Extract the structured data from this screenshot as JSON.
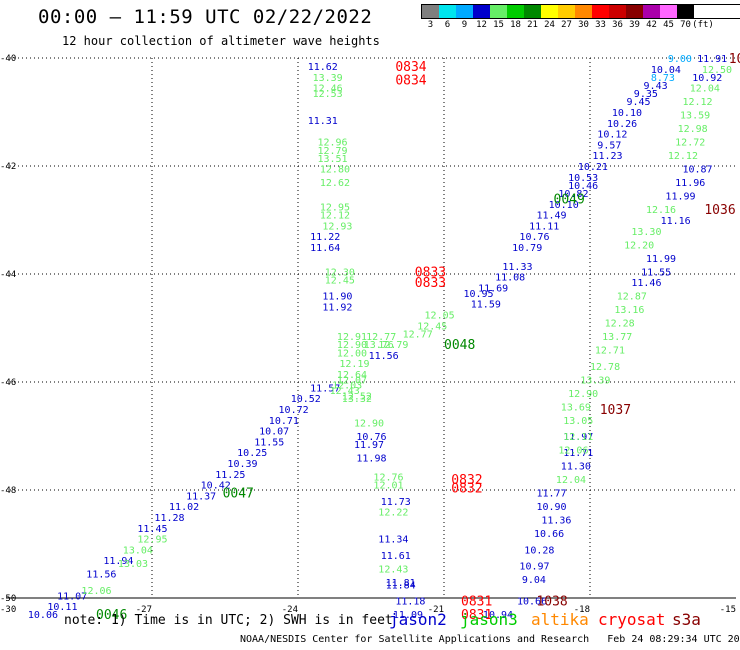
{
  "header": {
    "title": "00:00 – 11:59 UTC 02/22/2022",
    "subtitle": "12 hour collection of altimeter wave heights"
  },
  "color_scale": {
    "unit": "(ft)",
    "bins": [
      {
        "label": "3",
        "color": "#7f7f7f"
      },
      {
        "label": "6",
        "color": "#00e5ee"
      },
      {
        "label": "9",
        "color": "#00aaff"
      },
      {
        "label": "12",
        "color": "#0000cc"
      },
      {
        "label": "15",
        "color": "#66ee66"
      },
      {
        "label": "18",
        "color": "#00cc00"
      },
      {
        "label": "21",
        "color": "#008800"
      },
      {
        "label": "24",
        "color": "#ffff00"
      },
      {
        "label": "27",
        "color": "#ffcc00"
      },
      {
        "label": "30",
        "color": "#ff8800"
      },
      {
        "label": "33",
        "color": "#ff0000"
      },
      {
        "label": "36",
        "color": "#cc0000"
      },
      {
        "label": "39",
        "color": "#880000"
      },
      {
        "label": "42",
        "color": "#aa00aa"
      },
      {
        "label": "45",
        "color": "#ff66ff"
      },
      {
        "label": "70",
        "color": "#000000"
      }
    ]
  },
  "footer": {
    "note": "note: 1) Time is in UTC; 2) SWH is in feet",
    "credit": "NOAA/NESDIS Center for Satellite Applications and Research   Feb 24 08:29:34 UTC 2022",
    "satellites": [
      {
        "name": "jason2",
        "color": "#0000cc"
      },
      {
        "name": "jason3",
        "color": "#00cc00"
      },
      {
        "name": "altika",
        "color": "#ff8800"
      },
      {
        "name": "cryosat",
        "color": "#ff0000"
      },
      {
        "name": "s3a",
        "color": "#880000"
      }
    ]
  },
  "chart_data": {
    "type": "scatter",
    "title": "12 hour collection of altimeter wave heights",
    "xlabel": "",
    "ylabel": "",
    "xlim": [
      -30,
      -15
    ],
    "ylim": [
      -50,
      -40
    ],
    "x_ticks": [
      "-27",
      "-24",
      "-21",
      "-18",
      "-15"
    ],
    "y_ticks": [
      "-40",
      "-42",
      "-44",
      "-46",
      "-48",
      "-50"
    ],
    "x_corner_label": "-30",
    "grid": true,
    "series": [
      {
        "name": "jason2",
        "color": "#0000cc",
        "points": [
          {
            "x": -20.3,
            "y": -44.25,
            "v": "11.69"
          },
          {
            "x": -20.6,
            "y": -44.35,
            "v": "10.95"
          },
          {
            "x": -20.45,
            "y": -44.55,
            "v": "11.59"
          },
          {
            "x": -19.95,
            "y": -44.05,
            "v": "11.08"
          },
          {
            "x": -19.8,
            "y": -43.85,
            "v": "11.33"
          },
          {
            "x": -19.6,
            "y": -43.5,
            "v": "10.79"
          },
          {
            "x": -19.45,
            "y": -43.3,
            "v": "10.76"
          },
          {
            "x": -19.25,
            "y": -43.1,
            "v": "11.11"
          },
          {
            "x": -19.1,
            "y": -42.9,
            "v": "11.49"
          },
          {
            "x": -18.85,
            "y": -42.7,
            "v": "10.10"
          },
          {
            "x": -18.65,
            "y": -42.5,
            "v": "10.82"
          },
          {
            "x": -18.45,
            "y": -42.35,
            "v": "10.46"
          },
          {
            "x": -18.45,
            "y": -42.2,
            "v": "10.53"
          },
          {
            "x": -18.25,
            "y": -42.0,
            "v": "10.21"
          },
          {
            "x": -17.95,
            "y": -41.8,
            "v": "11.23"
          },
          {
            "x": -17.85,
            "y": -41.6,
            "v": "9.57"
          },
          {
            "x": -17.85,
            "y": -41.4,
            "v": "10.12"
          },
          {
            "x": -17.65,
            "y": -41.2,
            "v": "10.26"
          },
          {
            "x": -17.55,
            "y": -41.0,
            "v": "10.10"
          },
          {
            "x": -17.25,
            "y": -40.8,
            "v": "9.45"
          },
          {
            "x": -17.1,
            "y": -40.65,
            "v": "9.35"
          },
          {
            "x": -16.9,
            "y": -40.5,
            "v": "9.43"
          },
          {
            "x": -16.75,
            "y": -40.2,
            "v": "10.04"
          },
          {
            "x": -15.9,
            "y": -40.35,
            "v": "10.92"
          },
          {
            "x": -15.8,
            "y": -40.0,
            "v": "11.91"
          },
          {
            "x": -16.1,
            "y": -42.05,
            "v": "10.87"
          },
          {
            "x": -16.25,
            "y": -42.3,
            "v": "11.96"
          },
          {
            "x": -16.45,
            "y": -42.55,
            "v": "11.99"
          },
          {
            "x": -16.55,
            "y": -43.0,
            "v": "11.16"
          },
          {
            "x": -16.85,
            "y": -43.7,
            "v": "11.99"
          },
          {
            "x": -16.95,
            "y": -43.95,
            "v": "11.55"
          },
          {
            "x": -17.15,
            "y": -44.15,
            "v": "11.46"
          },
          {
            "x": -23.75,
            "y": -46.1,
            "v": "11.57"
          },
          {
            "x": -24.15,
            "y": -46.3,
            "v": "10.52"
          },
          {
            "x": -24.4,
            "y": -46.5,
            "v": "10.72"
          },
          {
            "x": -24.6,
            "y": -46.7,
            "v": "10.71"
          },
          {
            "x": -24.8,
            "y": -46.9,
            "v": "10.07"
          },
          {
            "x": -24.9,
            "y": -47.1,
            "v": "11.55"
          },
          {
            "x": -25.25,
            "y": -47.3,
            "v": "10.25"
          },
          {
            "x": -25.45,
            "y": -47.5,
            "v": "10.39"
          },
          {
            "x": -25.7,
            "y": -47.7,
            "v": "11.25"
          },
          {
            "x": -26.0,
            "y": -47.9,
            "v": "10.42"
          },
          {
            "x": -26.3,
            "y": -48.1,
            "v": "11.37"
          },
          {
            "x": -26.65,
            "y": -48.3,
            "v": "11.02"
          },
          {
            "x": -26.95,
            "y": -48.5,
            "v": "11.28"
          },
          {
            "x": -27.3,
            "y": -48.7,
            "v": "11.45"
          },
          {
            "x": -28.0,
            "y": -49.3,
            "v": "11.94"
          },
          {
            "x": -28.35,
            "y": -49.55,
            "v": "11.56"
          },
          {
            "x": -28.95,
            "y": -49.95,
            "v": "11.07"
          },
          {
            "x": -29.15,
            "y": -50.15,
            "v": "10.11"
          },
          {
            "x": -29.55,
            "y": -50.3,
            "v": "10.06"
          },
          {
            "x": -23.8,
            "y": -40.15,
            "v": "11.62"
          },
          {
            "x": -23.8,
            "y": -41.15,
            "v": "11.31"
          },
          {
            "x": -23.75,
            "y": -43.3,
            "v": "11.22"
          },
          {
            "x": -23.75,
            "y": -43.5,
            "v": "11.64"
          },
          {
            "x": -23.5,
            "y": -44.4,
            "v": "11.90"
          },
          {
            "x": -23.5,
            "y": -44.6,
            "v": "11.92"
          },
          {
            "x": -22.55,
            "y": -45.5,
            "v": "11.56"
          },
          {
            "x": -22.8,
            "y": -47.0,
            "v": "10.76"
          },
          {
            "x": -22.85,
            "y": -47.15,
            "v": "11.97"
          },
          {
            "x": -22.8,
            "y": -47.4,
            "v": "11.98"
          },
          {
            "x": -22.3,
            "y": -48.2,
            "v": "11.73"
          },
          {
            "x": -22.35,
            "y": -48.9,
            "v": "11.34"
          },
          {
            "x": -22.3,
            "y": -49.2,
            "v": "11.61"
          },
          {
            "x": -22.2,
            "y": -49.7,
            "v": "11.81"
          },
          {
            "x": -22.2,
            "y": -49.75,
            "v": "11.84"
          },
          {
            "x": -22.0,
            "y": -50.05,
            "v": "11.18"
          },
          {
            "x": -22.05,
            "y": -50.3,
            "v": "11.09"
          },
          {
            "x": -20.2,
            "y": -50.3,
            "v": "10.94"
          },
          {
            "x": -19.5,
            "y": -50.05,
            "v": "10.66"
          },
          {
            "x": -19.4,
            "y": -49.65,
            "v": "9.04"
          },
          {
            "x": -19.45,
            "y": -49.4,
            "v": "10.97"
          },
          {
            "x": -19.35,
            "y": -49.1,
            "v": "10.28"
          },
          {
            "x": -19.15,
            "y": -48.8,
            "v": "10.66"
          },
          {
            "x": -19.0,
            "y": -48.55,
            "v": "11.36"
          },
          {
            "x": -19.1,
            "y": -48.3,
            "v": "10.90"
          },
          {
            "x": -19.1,
            "y": -48.05,
            "v": "11.77"
          },
          {
            "x": -18.6,
            "y": -47.55,
            "v": "11.30"
          },
          {
            "x": -18.55,
            "y": -47.3,
            "v": "11.71"
          },
          {
            "x": -18.55,
            "y": -47.0,
            "v": "11.97"
          }
        ]
      },
      {
        "name": "jason3",
        "color": "#66ee66",
        "points": [
          {
            "x": -23.7,
            "y": -40.35,
            "v": "13.39"
          },
          {
            "x": -23.7,
            "y": -40.55,
            "v": "12.46"
          },
          {
            "x": -23.7,
            "y": -40.65,
            "v": "12.53"
          },
          {
            "x": -23.6,
            "y": -41.55,
            "v": "12.96"
          },
          {
            "x": -23.6,
            "y": -41.7,
            "v": "12.79"
          },
          {
            "x": -23.6,
            "y": -41.85,
            "v": "13.51"
          },
          {
            "x": -23.55,
            "y": -42.05,
            "v": "12.80"
          },
          {
            "x": -23.55,
            "y": -42.3,
            "v": "12.62"
          },
          {
            "x": -23.55,
            "y": -42.75,
            "v": "12.95"
          },
          {
            "x": -23.55,
            "y": -42.9,
            "v": "12.12"
          },
          {
            "x": -23.5,
            "y": -43.1,
            "v": "12.93"
          },
          {
            "x": -23.45,
            "y": -43.95,
            "v": "12.30"
          },
          {
            "x": -23.45,
            "y": -44.1,
            "v": "12.45"
          },
          {
            "x": -23.2,
            "y": -45.15,
            "v": "12.91"
          },
          {
            "x": -23.2,
            "y": -45.3,
            "v": "12.90"
          },
          {
            "x": -23.2,
            "y": -45.45,
            "v": "12.00"
          },
          {
            "x": -22.6,
            "y": -45.15,
            "v": "12.77"
          },
          {
            "x": -22.65,
            "y": -45.3,
            "v": "13.76"
          },
          {
            "x": -21.4,
            "y": -44.75,
            "v": "12.05"
          },
          {
            "x": -21.55,
            "y": -44.95,
            "v": "12.45"
          },
          {
            "x": -21.85,
            "y": -45.1,
            "v": "12.77"
          },
          {
            "x": -22.35,
            "y": -45.3,
            "v": "12.79"
          },
          {
            "x": -23.15,
            "y": -45.65,
            "v": "12.19"
          },
          {
            "x": -23.2,
            "y": -45.85,
            "v": "12.64"
          },
          {
            "x": -23.2,
            "y": -45.95,
            "v": "12.07"
          },
          {
            "x": -23.3,
            "y": -46.05,
            "v": "12.03"
          },
          {
            "x": -23.35,
            "y": -46.15,
            "v": "12.43"
          },
          {
            "x": -23.1,
            "y": -46.25,
            "v": "12.52"
          },
          {
            "x": -23.1,
            "y": -46.3,
            "v": "13.32"
          },
          {
            "x": -22.85,
            "y": -46.75,
            "v": "12.90"
          },
          {
            "x": -22.45,
            "y": -47.75,
            "v": "12.76"
          },
          {
            "x": -22.45,
            "y": -47.9,
            "v": "12.01"
          },
          {
            "x": -22.35,
            "y": -48.4,
            "v": "12.22"
          },
          {
            "x": -22.35,
            "y": -49.45,
            "v": "12.43"
          },
          {
            "x": -15.7,
            "y": -40.2,
            "v": "12.50"
          },
          {
            "x": -15.95,
            "y": -40.55,
            "v": "12.04"
          },
          {
            "x": -16.1,
            "y": -40.8,
            "v": "12.12"
          },
          {
            "x": -16.15,
            "y": -41.05,
            "v": "13.59"
          },
          {
            "x": -16.2,
            "y": -41.3,
            "v": "12.98"
          },
          {
            "x": -16.25,
            "y": -41.55,
            "v": "12.72"
          },
          {
            "x": -16.4,
            "y": -41.8,
            "v": "12.12"
          },
          {
            "x": -16.85,
            "y": -42.8,
            "v": "12.16"
          },
          {
            "x": -17.15,
            "y": -43.2,
            "v": "13.30"
          },
          {
            "x": -17.3,
            "y": -43.45,
            "v": "12.20"
          },
          {
            "x": -17.45,
            "y": -44.4,
            "v": "12.87"
          },
          {
            "x": -17.5,
            "y": -44.65,
            "v": "13.16"
          },
          {
            "x": -17.7,
            "y": -44.9,
            "v": "12.28"
          },
          {
            "x": -17.75,
            "y": -45.15,
            "v": "13.77"
          },
          {
            "x": -17.9,
            "y": -45.4,
            "v": "12.71"
          },
          {
            "x": -18.0,
            "y": -45.7,
            "v": "12.78"
          },
          {
            "x": -18.2,
            "y": -45.95,
            "v": "13.39"
          },
          {
            "x": -18.45,
            "y": -46.2,
            "v": "12.90"
          },
          {
            "x": -18.6,
            "y": -46.45,
            "v": "13.69"
          },
          {
            "x": -18.55,
            "y": -46.7,
            "v": "13.05"
          },
          {
            "x": -18.55,
            "y": -47.0,
            "v": "12.11"
          },
          {
            "x": -18.65,
            "y": -47.25,
            "v": "12.06"
          },
          {
            "x": -18.7,
            "y": -47.8,
            "v": "12.04"
          },
          {
            "x": -27.3,
            "y": -48.9,
            "v": "12.95"
          },
          {
            "x": -27.6,
            "y": -49.1,
            "v": "13.04"
          },
          {
            "x": -27.7,
            "y": -49.35,
            "v": "13.03"
          },
          {
            "x": -28.45,
            "y": -49.85,
            "v": "12.06"
          }
        ]
      },
      {
        "name": "jason3",
        "color": "#00aaff",
        "points": [
          {
            "x": -16.4,
            "y": -40.0,
            "v": "9.00"
          },
          {
            "x": -16.75,
            "y": -40.35,
            "v": "8.73"
          }
        ]
      },
      {
        "name": "cryosat",
        "color": "#ff0000",
        "points": [
          {
            "x": -22.0,
            "y": -40.15,
            "v": "0834"
          },
          {
            "x": -22.0,
            "y": -40.4,
            "v": "0834"
          },
          {
            "x": -21.6,
            "y": -43.95,
            "v": "0833"
          },
          {
            "x": -21.6,
            "y": -44.15,
            "v": "0833"
          },
          {
            "x": -20.85,
            "y": -47.8,
            "v": "0832"
          },
          {
            "x": -20.85,
            "y": -47.95,
            "v": "0832"
          },
          {
            "x": -20.65,
            "y": -50.05,
            "v": "0831"
          },
          {
            "x": -20.65,
            "y": -50.3,
            "v": "0831"
          }
        ]
      },
      {
        "name": "jason3",
        "color": "#008800",
        "points": [
          {
            "x": -18.75,
            "y": -42.6,
            "v": "0049"
          },
          {
            "x": -21.0,
            "y": -45.3,
            "v": "0048"
          },
          {
            "x": -25.55,
            "y": -48.05,
            "v": "0047"
          },
          {
            "x": -28.15,
            "y": -50.3,
            "v": "0046"
          }
        ]
      },
      {
        "name": "s3a",
        "color": "#880000",
        "points": [
          {
            "x": -15.15,
            "y": -40.0,
            "v": "10"
          },
          {
            "x": -15.65,
            "y": -42.8,
            "v": "1036"
          },
          {
            "x": -17.8,
            "y": -46.5,
            "v": "1037"
          },
          {
            "x": -19.1,
            "y": -50.05,
            "v": "1038"
          }
        ]
      }
    ]
  }
}
